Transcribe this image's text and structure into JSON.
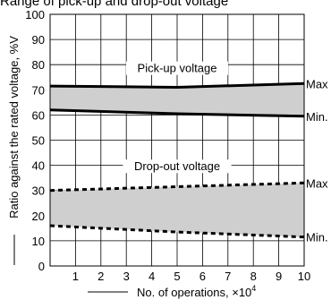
{
  "chart_data": {
    "type": "area",
    "title": "Range of pick-up and drop-out voltage",
    "xlabel": "No. of operations, ×10",
    "xlabel_exponent": "4",
    "ylabel": "Ratio against the rated voltage, %V",
    "xlim": [
      0,
      10
    ],
    "ylim": [
      0,
      100
    ],
    "x_ticks": [
      1,
      2,
      3,
      4,
      5,
      6,
      7,
      8,
      9,
      10
    ],
    "y_ticks": [
      0,
      10,
      20,
      30,
      40,
      50,
      60,
      70,
      80,
      90,
      100
    ],
    "grid": true,
    "bands": [
      {
        "label": "Pick-up voltage",
        "x": [
          0,
          5,
          10
        ],
        "upper": [
          71.5,
          71,
          72.5
        ],
        "lower": [
          62,
          60.5,
          59.5
        ],
        "upper_label": "Max",
        "lower_label": "Min.",
        "line_style": "solid",
        "fill": "#cfcfcf"
      },
      {
        "label": "Drop-out voltage",
        "x": [
          0,
          5,
          10
        ],
        "upper": [
          30,
          31.5,
          33
        ],
        "lower": [
          16,
          13.5,
          11.5
        ],
        "upper_label": "Max",
        "lower_label": "Min.",
        "line_style": "dashed",
        "fill": "#cfcfcf"
      }
    ]
  }
}
